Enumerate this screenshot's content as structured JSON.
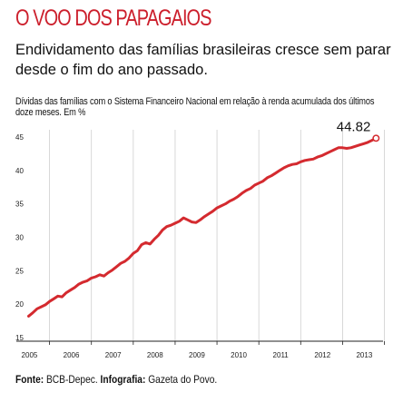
{
  "kicker": "O VOO DOS PAPAGAIOS",
  "headline": "Endividamento das famílias brasileiras cresce sem parar desde o fim do ano passado.",
  "footer": {
    "source_label": "Fonte:",
    "source_value": " BCB-Depec. ",
    "credit_label": "Infografia:",
    "credit_value": " Gazeta do Povo."
  },
  "colors": {
    "kicker": "#cc1f2c",
    "line": "#d42a2f",
    "grid": "#cfcfcf",
    "axis": "#222222"
  },
  "chart_data": {
    "type": "line",
    "title": "Dívidas das famílias com o Sistema Financeiro Nacional em relação à renda acumulada dos últimos doze meses. Em %",
    "xlabel": "",
    "ylabel": "",
    "ylim": [
      15,
      45
    ],
    "yticks": [
      "15",
      "20",
      "25",
      "30",
      "35",
      "40",
      "45"
    ],
    "xticks": [
      "2005",
      "2006",
      "2007",
      "2008",
      "2009",
      "2010",
      "2011",
      "2012",
      "2013"
    ],
    "grid": "vertical",
    "end_label": "44.82",
    "x": [
      2005.0,
      2005.1,
      2005.2,
      2005.3,
      2005.4,
      2005.5,
      2005.6,
      2005.7,
      2005.8,
      2005.9,
      2006.0,
      2006.1,
      2006.2,
      2006.3,
      2006.4,
      2006.5,
      2006.6,
      2006.7,
      2006.8,
      2006.9,
      2007.0,
      2007.1,
      2007.2,
      2007.3,
      2007.4,
      2007.5,
      2007.6,
      2007.7,
      2007.8,
      2007.9,
      2008.0,
      2008.1,
      2008.2,
      2008.3,
      2008.4,
      2008.5,
      2008.6,
      2008.7,
      2008.8,
      2008.9,
      2009.0,
      2009.1,
      2009.2,
      2009.3,
      2009.4,
      2009.5,
      2009.6,
      2009.7,
      2009.8,
      2009.9,
      2010.0,
      2010.1,
      2010.2,
      2010.3,
      2010.4,
      2010.5,
      2010.6,
      2010.7,
      2010.8,
      2010.9,
      2011.0,
      2011.1,
      2011.2,
      2011.3,
      2011.4,
      2011.5,
      2011.6,
      2011.7,
      2011.8,
      2011.9,
      2012.0,
      2012.1,
      2012.2,
      2012.3,
      2012.4,
      2012.5,
      2012.6,
      2012.7,
      2012.8,
      2012.9,
      2013.0,
      2013.1,
      2013.2,
      2013.3
    ],
    "series": [
      {
        "values": [
          18.2,
          18.7,
          19.3,
          19.6,
          19.9,
          20.4,
          20.8,
          21.2,
          21.1,
          21.7,
          22.1,
          22.5,
          23.0,
          23.3,
          23.5,
          23.9,
          24.1,
          24.4,
          24.2,
          24.7,
          25.1,
          25.6,
          26.1,
          26.4,
          26.9,
          27.6,
          28.0,
          28.9,
          29.2,
          29.0,
          29.7,
          30.3,
          31.1,
          31.6,
          31.8,
          32.1,
          32.4,
          32.9,
          32.6,
          32.3,
          32.2,
          32.6,
          33.1,
          33.5,
          33.9,
          34.4,
          34.7,
          35.0,
          35.4,
          35.7,
          36.1,
          36.6,
          37.0,
          37.3,
          37.8,
          38.1,
          38.4,
          38.9,
          39.2,
          39.6,
          40.0,
          40.4,
          40.7,
          40.9,
          41.0,
          41.3,
          41.5,
          41.6,
          41.7,
          42.0,
          42.2,
          42.5,
          42.8,
          43.1,
          43.4,
          43.4,
          43.3,
          43.4,
          43.6,
          43.8,
          44.0,
          44.2,
          44.5,
          44.82
        ]
      }
    ]
  }
}
